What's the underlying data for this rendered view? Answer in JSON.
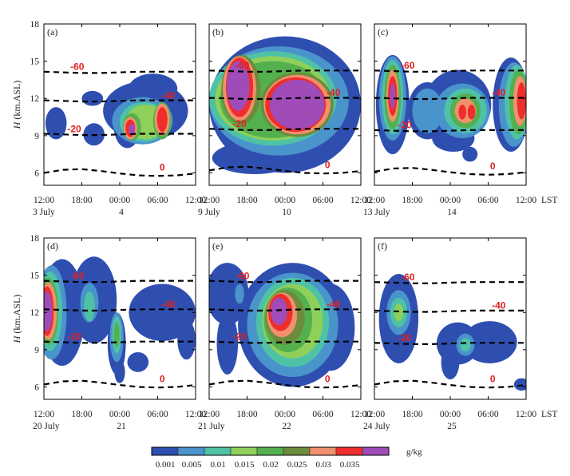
{
  "chart_data": {
    "type": "contour",
    "y_axis_label": "H (km.ASL)",
    "y_axis_label_italic": "H",
    "y_axis_label_rest": " (km.ASL)",
    "y_ticks": [
      "6",
      "9",
      "12",
      "15",
      "18"
    ],
    "ylim": [
      5,
      18
    ],
    "x_ticks": [
      "12:00",
      "18:00",
      "00:00",
      "06:00",
      "12:00"
    ],
    "x_unit": "LST",
    "colorbar": {
      "unit": "g/kg",
      "levels": [
        "0.001",
        "0.005",
        "0.01",
        "0.015",
        "0.02",
        "0.025",
        "0.03",
        "0.035"
      ],
      "colors": [
        "#2f4fb0",
        "#4a94cc",
        "#4fc2a6",
        "#8fd05a",
        "#54b04e",
        "#6c8c3c",
        "#f0906c",
        "#ee2d2d",
        "#a04cb8"
      ]
    },
    "isotherm_color": "#e02020",
    "panels": [
      {
        "id": "a",
        "label": "(a)",
        "dates": [
          "3 July",
          "4"
        ],
        "isotherms": [
          {
            "t": "-60",
            "h": 14.1
          },
          {
            "t": "-40",
            "h": 11.8
          },
          {
            "t": "-20",
            "h": 9.1
          },
          {
            "t": "0",
            "h": 6.0
          }
        ]
      },
      {
        "id": "b",
        "label": "(b)",
        "dates": [
          "9 July",
          "10"
        ],
        "isotherms": [
          {
            "t": "-60",
            "h": 14.2
          },
          {
            "t": "-40",
            "h": 12.0
          },
          {
            "t": "-20",
            "h": 9.5
          },
          {
            "t": "0",
            "h": 6.2
          }
        ]
      },
      {
        "id": "c",
        "label": "(c)",
        "dates": [
          "13 July",
          "14"
        ],
        "isotherms": [
          {
            "t": "-60",
            "h": 14.2
          },
          {
            "t": "-40",
            "h": 12.0
          },
          {
            "t": "-20",
            "h": 9.4
          },
          {
            "t": "0",
            "h": 6.1
          }
        ]
      },
      {
        "id": "d",
        "label": "(d)",
        "dates": [
          "20 July",
          "21"
        ],
        "isotherms": [
          {
            "t": "-60",
            "h": 14.5
          },
          {
            "t": "-40",
            "h": 12.2
          },
          {
            "t": "-20",
            "h": 9.6
          },
          {
            "t": "0",
            "h": 6.2
          }
        ]
      },
      {
        "id": "e",
        "label": "(e)",
        "dates": [
          "21 July",
          "22"
        ],
        "isotherms": [
          {
            "t": "-60",
            "h": 14.5
          },
          {
            "t": "-40",
            "h": 12.2
          },
          {
            "t": "-20",
            "h": 9.6
          },
          {
            "t": "0",
            "h": 6.2
          }
        ]
      },
      {
        "id": "f",
        "label": "(f)",
        "dates": [
          "24 July",
          "25"
        ],
        "isotherms": [
          {
            "t": "-60",
            "h": 14.4
          },
          {
            "t": "-40",
            "h": 12.1
          },
          {
            "t": "-20",
            "h": 9.5
          },
          {
            "t": "0",
            "h": 6.2
          }
        ]
      }
    ]
  }
}
